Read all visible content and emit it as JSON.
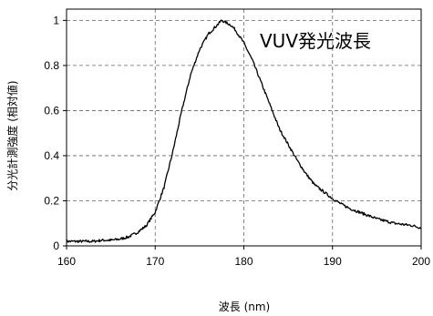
{
  "chart_data": {
    "type": "line",
    "title": "",
    "annotation": "VUV発光波長",
    "xlabel": "波長 (nm)",
    "ylabel": "分光計測強度 (相対値)",
    "xlim": [
      160,
      200
    ],
    "ylim": [
      0,
      1.05
    ],
    "xticks": [
      160,
      170,
      180,
      190,
      200
    ],
    "xtick_labels": [
      "160",
      "170",
      "180",
      "190",
      "200"
    ],
    "yticks": [
      0,
      0.2,
      0.4,
      0.6,
      0.8,
      1
    ],
    "ytick_labels": [
      "0",
      "0.2",
      "0.4",
      "0.6",
      "0.8",
      "1"
    ],
    "grid": "dashed",
    "line_color": "#000000",
    "series": [
      {
        "x": [
          160,
          161,
          162,
          163,
          164,
          165,
          166,
          167,
          168,
          169,
          170,
          171,
          172,
          173,
          174,
          175,
          176,
          177,
          177.5,
          178,
          178.5,
          179,
          180,
          181,
          182,
          183,
          184,
          185,
          186,
          187,
          188,
          189,
          190,
          191,
          192,
          193,
          194,
          195,
          196,
          197,
          198,
          199,
          200
        ],
        "y": [
          0.02,
          0.02,
          0.02,
          0.02,
          0.025,
          0.025,
          0.03,
          0.04,
          0.06,
          0.09,
          0.15,
          0.26,
          0.42,
          0.6,
          0.76,
          0.87,
          0.94,
          0.98,
          1.0,
          0.99,
          0.98,
          0.96,
          0.9,
          0.82,
          0.72,
          0.62,
          0.52,
          0.45,
          0.38,
          0.32,
          0.27,
          0.24,
          0.21,
          0.185,
          0.165,
          0.15,
          0.135,
          0.12,
          0.11,
          0.1,
          0.095,
          0.09,
          0.08
        ]
      }
    ]
  }
}
